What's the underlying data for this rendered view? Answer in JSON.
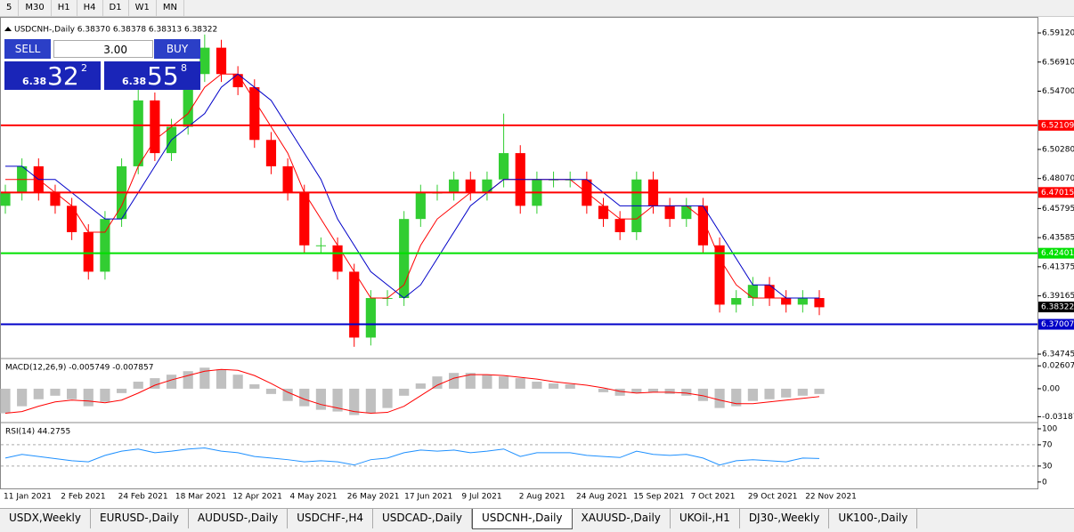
{
  "toolbar": {
    "timeframes": [
      "5",
      "M30",
      "H1",
      "H4",
      "D1",
      "W1",
      "MN"
    ]
  },
  "chart": {
    "header": "USDCNH-,Daily  6.38370 6.38378 6.38313 6.38322",
    "trade_panel": {
      "sell": "SELL",
      "lot": "3.00",
      "buy": "BUY",
      "bid_prefix": "6.38",
      "bid_big": "32",
      "bid_sup": "2",
      "ask_prefix": "6.38",
      "ask_big": "55",
      "ask_sup": "8"
    },
    "ylim": [
      6.3441,
      6.6027
    ],
    "yticks": [
      {
        "value": 6.5912,
        "label": "6.59120"
      },
      {
        "value": 6.5691,
        "label": "6.56910"
      },
      {
        "value": 6.547,
        "label": "6.54700"
      },
      {
        "value": 6.5028,
        "label": "6.50280"
      },
      {
        "value": 6.4807,
        "label": "6.48070"
      },
      {
        "value": 6.45795,
        "label": "6.45795"
      },
      {
        "value": 6.43585,
        "label": "6.43585"
      },
      {
        "value": 6.41375,
        "label": "6.41375"
      },
      {
        "value": 6.39165,
        "label": "6.39165"
      },
      {
        "value": 6.34745,
        "label": "6.34745"
      }
    ],
    "levels": [
      {
        "value": 6.52109,
        "label": "6.52109",
        "color": "#ff0000"
      },
      {
        "value": 6.47015,
        "label": "6.47015",
        "color": "#ff0000"
      },
      {
        "value": 6.42401,
        "label": "6.42401",
        "color": "#00e000"
      },
      {
        "value": 6.37007,
        "label": "6.37007",
        "color": "#0000c8"
      }
    ],
    "current": {
      "value": 6.38322,
      "label": "6.38322"
    },
    "candles": {
      "open": [
        6.46,
        6.47,
        6.49,
        6.47,
        6.46,
        6.44,
        6.41,
        6.45,
        6.49,
        6.54,
        6.5,
        6.52,
        6.56,
        6.58,
        6.56,
        6.55,
        6.51,
        6.49,
        6.47,
        6.43,
        6.43,
        6.41,
        6.36,
        6.39,
        6.39,
        6.45,
        6.47,
        6.47,
        6.48,
        6.47,
        6.48,
        6.5,
        6.46,
        6.48,
        6.48,
        6.48,
        6.46,
        6.45,
        6.44,
        6.48,
        6.46,
        6.45,
        6.46,
        6.43,
        6.385,
        6.39,
        6.4,
        6.39,
        6.385,
        6.39
      ],
      "high": [
        6.476,
        6.496,
        6.496,
        6.476,
        6.466,
        6.446,
        6.456,
        6.496,
        6.55,
        6.546,
        6.526,
        6.566,
        6.59,
        6.586,
        6.566,
        6.556,
        6.516,
        6.496,
        6.476,
        6.436,
        6.436,
        6.416,
        6.396,
        6.396,
        6.456,
        6.476,
        6.476,
        6.486,
        6.486,
        6.486,
        6.53,
        6.506,
        6.486,
        6.486,
        6.486,
        6.486,
        6.466,
        6.456,
        6.486,
        6.486,
        6.466,
        6.466,
        6.466,
        6.436,
        6.396,
        6.406,
        6.406,
        6.396,
        6.396,
        6.396
      ],
      "low": [
        6.454,
        6.464,
        6.464,
        6.454,
        6.434,
        6.404,
        6.404,
        6.444,
        6.484,
        6.494,
        6.494,
        6.514,
        6.554,
        6.554,
        6.544,
        6.504,
        6.484,
        6.464,
        6.424,
        6.424,
        6.404,
        6.353,
        6.354,
        6.384,
        6.384,
        6.444,
        6.464,
        6.464,
        6.464,
        6.464,
        6.474,
        6.454,
        6.454,
        6.474,
        6.474,
        6.454,
        6.444,
        6.434,
        6.434,
        6.454,
        6.444,
        6.444,
        6.424,
        6.379,
        6.379,
        6.384,
        6.384,
        6.379,
        6.379,
        6.377
      ],
      "close": [
        6.47,
        6.49,
        6.47,
        6.46,
        6.44,
        6.41,
        6.45,
        6.49,
        6.54,
        6.5,
        6.52,
        6.56,
        6.58,
        6.56,
        6.55,
        6.51,
        6.49,
        6.47,
        6.43,
        6.43,
        6.41,
        6.36,
        6.39,
        6.39,
        6.45,
        6.47,
        6.47,
        6.48,
        6.47,
        6.48,
        6.5,
        6.46,
        6.48,
        6.48,
        6.48,
        6.46,
        6.45,
        6.44,
        6.48,
        6.46,
        6.45,
        6.46,
        6.43,
        6.385,
        6.39,
        6.4,
        6.39,
        6.385,
        6.39,
        6.383
      ],
      "up_color": "#32cd32",
      "down_color": "#ff0000"
    },
    "ma": [
      {
        "color": "#ff0000",
        "values": [
          6.48,
          6.48,
          6.48,
          6.47,
          6.46,
          6.44,
          6.44,
          6.46,
          6.49,
          6.51,
          6.52,
          6.53,
          6.55,
          6.56,
          6.56,
          6.54,
          6.52,
          6.5,
          6.47,
          6.45,
          6.43,
          6.41,
          6.39,
          6.39,
          6.4,
          6.43,
          6.45,
          6.46,
          6.47,
          6.47,
          6.48,
          6.48,
          6.48,
          6.48,
          6.48,
          6.47,
          6.46,
          6.45,
          6.45,
          6.46,
          6.46,
          6.46,
          6.45,
          6.42,
          6.4,
          6.39,
          6.39,
          6.39,
          6.39,
          6.39
        ]
      },
      {
        "color": "#0000c8",
        "values": [
          6.49,
          6.49,
          6.48,
          6.48,
          6.47,
          6.46,
          6.45,
          6.45,
          6.47,
          6.49,
          6.51,
          6.52,
          6.53,
          6.55,
          6.56,
          6.55,
          6.54,
          6.52,
          6.5,
          6.48,
          6.45,
          6.43,
          6.41,
          6.4,
          6.39,
          6.4,
          6.42,
          6.44,
          6.46,
          6.47,
          6.48,
          6.48,
          6.48,
          6.48,
          6.48,
          6.48,
          6.47,
          6.46,
          6.46,
          6.46,
          6.46,
          6.46,
          6.46,
          6.44,
          6.42,
          6.4,
          6.4,
          6.39,
          6.39,
          6.39
        ]
      }
    ],
    "macd": {
      "label": "MACD(12,26,9) -0.005749 -0.007857",
      "ylim": [
        -0.0386,
        0.0334
      ],
      "yticks": [
        0.02607,
        {
          "value": 0,
          "label": "0.00"
        },
        -0.03187
      ],
      "histogram": [
        -0.028,
        -0.02,
        -0.012,
        -0.008,
        -0.012,
        -0.02,
        -0.015,
        -0.005,
        0.008,
        0.012,
        0.016,
        0.02,
        0.024,
        0.022,
        0.016,
        0.005,
        -0.006,
        -0.014,
        -0.02,
        -0.024,
        -0.026,
        -0.03,
        -0.028,
        -0.022,
        -0.008,
        0.006,
        0.014,
        0.018,
        0.018,
        0.016,
        0.014,
        0.012,
        0.008,
        0.006,
        0.005,
        0.0,
        -0.004,
        -0.008,
        -0.005,
        -0.004,
        -0.006,
        -0.008,
        -0.014,
        -0.022,
        -0.02,
        -0.014,
        -0.012,
        -0.01,
        -0.008,
        -0.006
      ],
      "signal": [
        -0.028,
        -0.026,
        -0.02,
        -0.015,
        -0.013,
        -0.014,
        -0.016,
        -0.013,
        -0.005,
        0.004,
        0.01,
        0.015,
        0.02,
        0.022,
        0.021,
        0.015,
        0.006,
        -0.004,
        -0.012,
        -0.018,
        -0.022,
        -0.026,
        -0.028,
        -0.027,
        -0.02,
        -0.008,
        0.004,
        0.012,
        0.016,
        0.016,
        0.015,
        0.013,
        0.011,
        0.008,
        0.006,
        0.004,
        0.001,
        -0.003,
        -0.005,
        -0.004,
        -0.004,
        -0.005,
        -0.008,
        -0.013,
        -0.017,
        -0.017,
        -0.015,
        -0.013,
        -0.011,
        -0.009
      ]
    },
    "rsi": {
      "label": "RSI(14) 44.2755",
      "ylim": [
        -12,
        110
      ],
      "yticks": [
        100,
        70,
        30,
        0
      ],
      "levels": [
        70,
        30
      ],
      "values": [
        45,
        52,
        48,
        44,
        40,
        38,
        50,
        58,
        62,
        55,
        58,
        62,
        64,
        58,
        55,
        48,
        45,
        42,
        38,
        40,
        38,
        32,
        42,
        45,
        55,
        60,
        58,
        60,
        55,
        58,
        62,
        48,
        55,
        55,
        55,
        50,
        48,
        46,
        58,
        52,
        50,
        52,
        45,
        32,
        40,
        42,
        40,
        38,
        45,
        44.2755
      ]
    },
    "dates": [
      "11 Jan 2021",
      "2 Feb 2021",
      "24 Feb 2021",
      "18 Mar 2021",
      "12 Apr 2021",
      "4 May 2021",
      "26 May 2021",
      "17 Jun 2021",
      "9 Jul 2021",
      "2 Aug 2021",
      "24 Aug 2021",
      "15 Sep 2021",
      "7 Oct 2021",
      "29 Oct 2021",
      "22 Nov 2021"
    ]
  },
  "tabs": {
    "items": [
      "USDX,Weekly",
      "EURUSD-,Daily",
      "AUDUSD-,Daily",
      "USDCHF-,H4",
      "USDCAD-,Daily",
      "USDCNH-,Daily",
      "XAUUSD-,Daily",
      "UKOil-,H1",
      "DJ30-,Weekly",
      "UK100-,Daily"
    ],
    "active": 5
  }
}
